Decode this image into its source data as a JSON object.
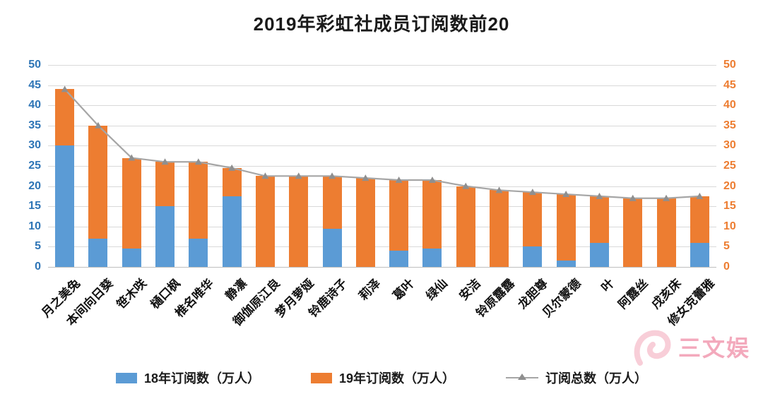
{
  "title": "2019年彩虹社成员订阅数前20",
  "chart_data": {
    "type": "bar",
    "subtype": "stacked-bars-with-total-line",
    "title": "2019年彩虹社成员订阅数前20",
    "categories": [
      "月之美兔",
      "本间向日葵",
      "笹木咲",
      "樋口枫",
      "椎名唯华",
      "静凛",
      "御伽原江良",
      "梦月萝娅",
      "铃鹿诗子",
      "莉泽",
      "葛叶",
      "绿仙",
      "安洁",
      "铃原露露",
      "龙胆尊",
      "贝尔蒙德",
      "叶",
      "阿露丝",
      "戌亥床",
      "修女克蕾雅"
    ],
    "series": [
      {
        "name": "18年订阅数（万人）",
        "type": "bar",
        "color": "#5b9bd5",
        "values": [
          30,
          7,
          4.5,
          15,
          7,
          17.5,
          0,
          0,
          9.5,
          0,
          4,
          4.5,
          0,
          0,
          5,
          1.5,
          6,
          0,
          0,
          6
        ]
      },
      {
        "name": "19年订阅数（万人）",
        "type": "bar",
        "color": "#ed7d31",
        "values": [
          14,
          28,
          22.5,
          11,
          19,
          7,
          22.5,
          22.5,
          13,
          22,
          17.5,
          17,
          20,
          19,
          13.5,
          16.5,
          11.5,
          17,
          17,
          11.5
        ]
      },
      {
        "name": "订阅总数（万人）",
        "type": "line",
        "color": "#a6a6a6",
        "marker": "triangle",
        "marker_color": "#8f8f8f",
        "values": [
          44,
          35,
          27,
          26,
          26,
          24.5,
          22.5,
          22.5,
          22.5,
          22,
          21.5,
          21.5,
          20,
          19,
          18.5,
          18,
          17.5,
          17,
          17,
          17.5
        ]
      }
    ],
    "ylim": [
      0,
      50
    ],
    "ytick_step": 5,
    "ytick_labels": [
      "0",
      "5",
      "10",
      "15",
      "20",
      "25",
      "30",
      "35",
      "40",
      "45",
      "50"
    ],
    "left_axis_color": "#2e75b6",
    "right_axis_color": "#ed7d31",
    "grid": true,
    "grid_color": "#d9d9d9",
    "legend_position": "bottom",
    "stacked": true
  },
  "watermark": {
    "text": "三文娱",
    "color": "#f2a0b5",
    "icon_color": "#f8c9d4"
  }
}
